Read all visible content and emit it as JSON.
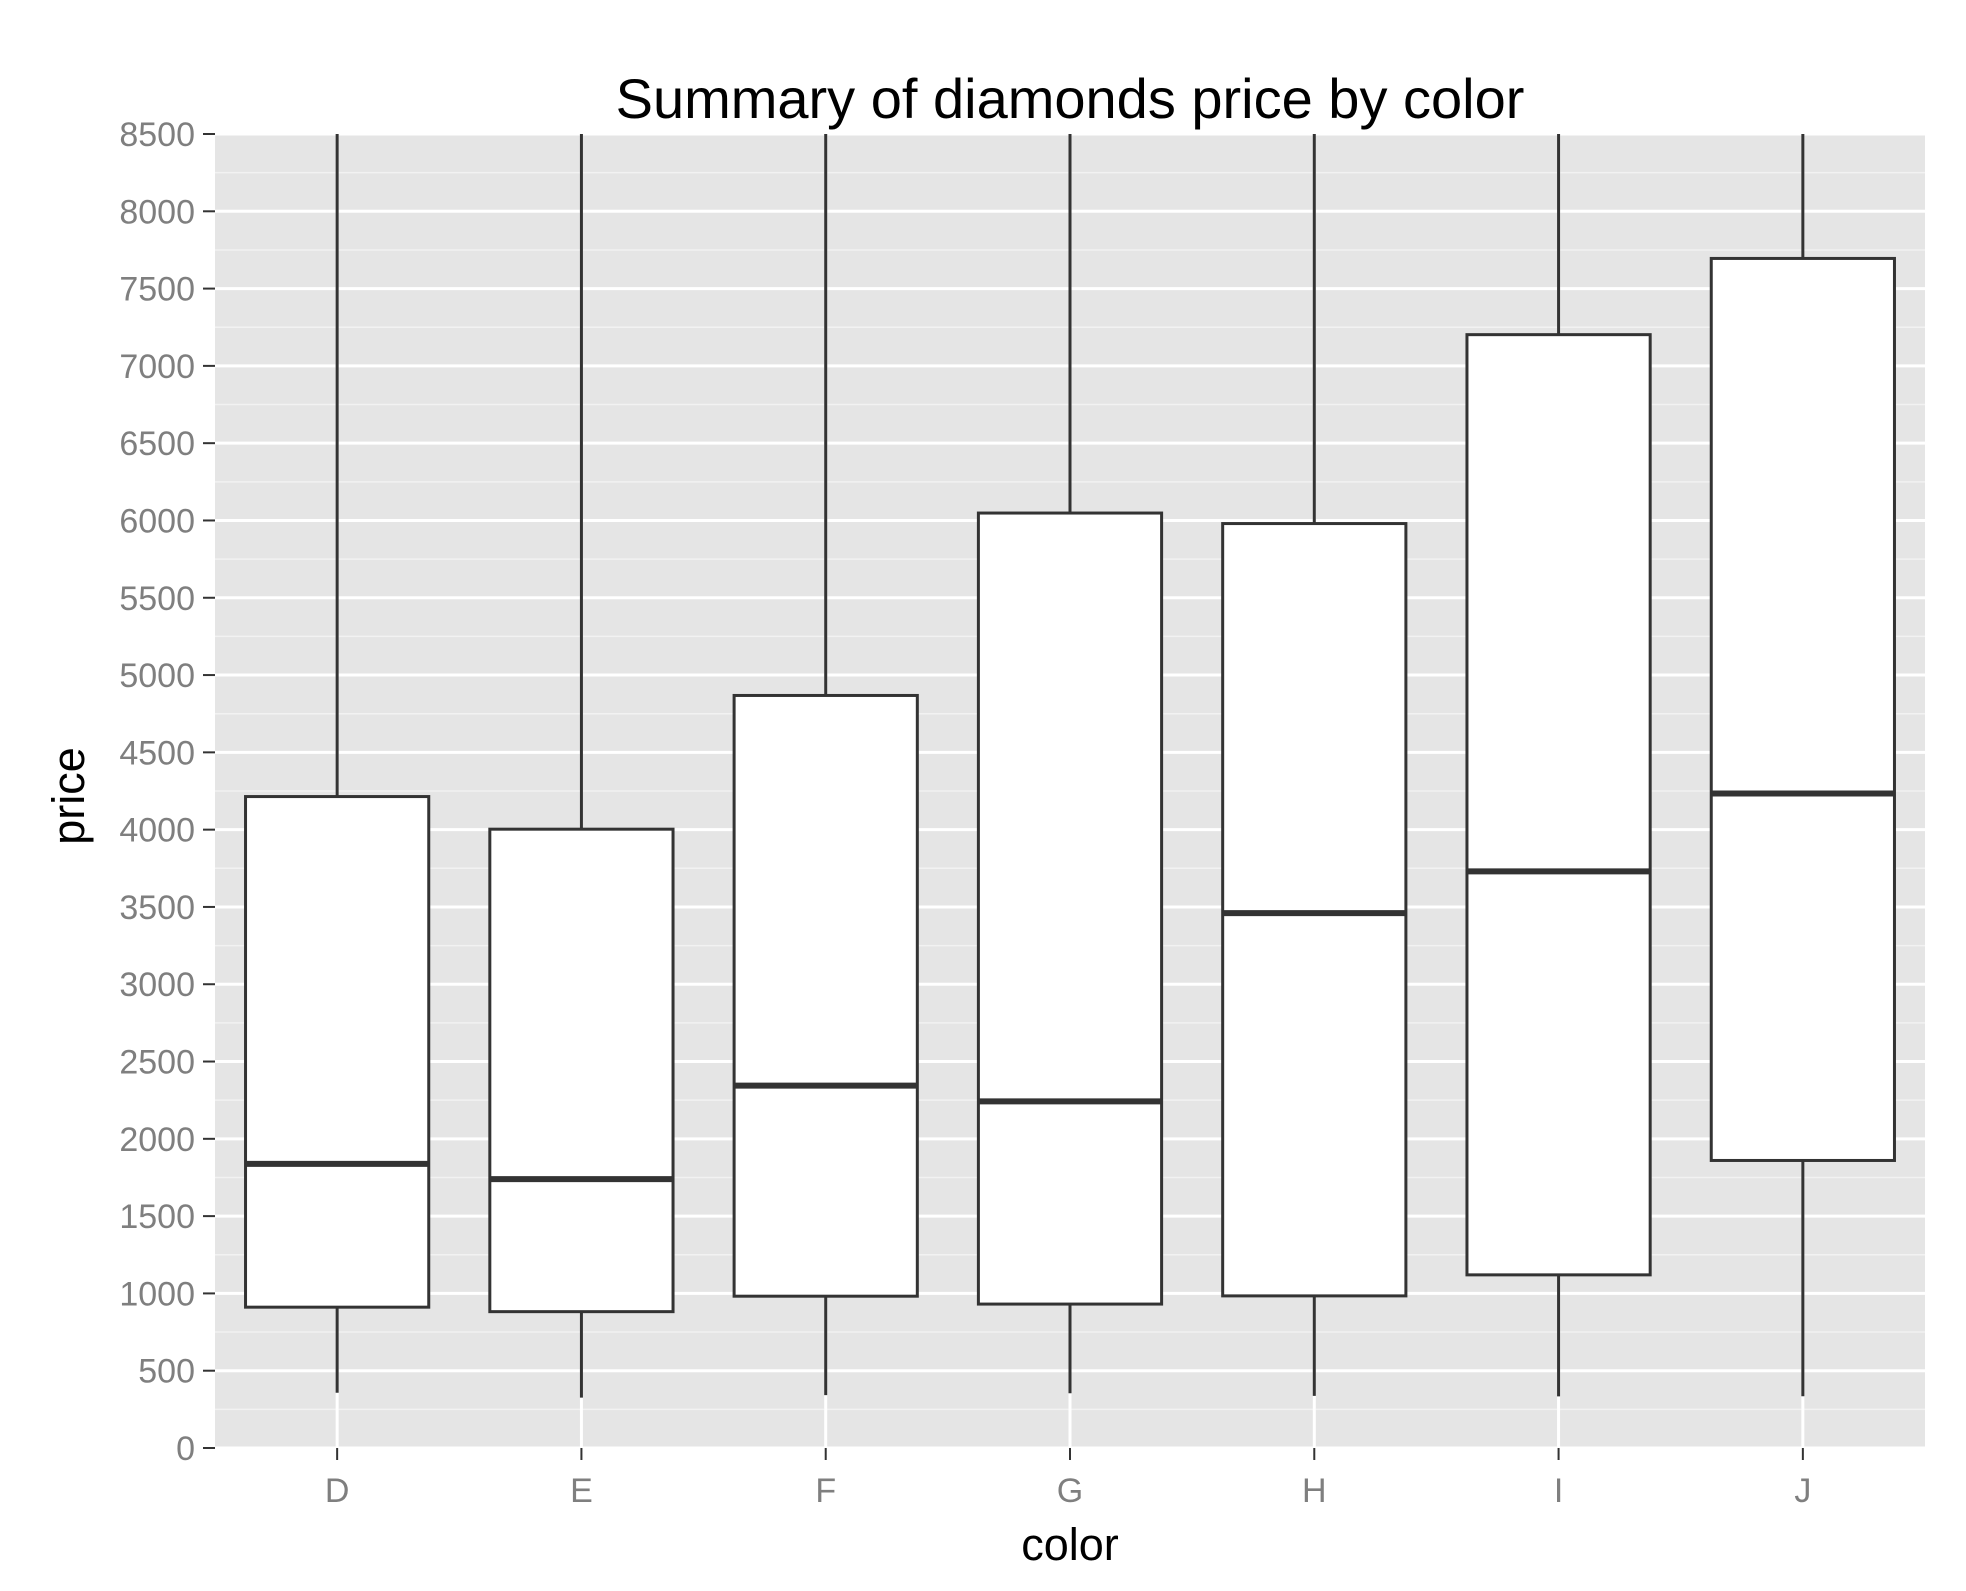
{
  "chart_data": {
    "type": "boxplot",
    "title": "Summary of diamonds price by color",
    "xlabel": "color",
    "ylabel": "price",
    "categories": [
      "D",
      "E",
      "F",
      "G",
      "H",
      "I",
      "J"
    ],
    "boxes": [
      {
        "q1": 911,
        "median": 1838,
        "q3": 4214,
        "whisker_low": 357,
        "whisker_high": 8500
      },
      {
        "q1": 882,
        "median": 1739,
        "q3": 4003,
        "whisker_low": 326,
        "whisker_high": 8500
      },
      {
        "q1": 982,
        "median": 2344,
        "q3": 4868,
        "whisker_low": 342,
        "whisker_high": 8500
      },
      {
        "q1": 931,
        "median": 2242,
        "q3": 6048,
        "whisker_low": 354,
        "whisker_high": 8500
      },
      {
        "q1": 984,
        "median": 3460,
        "q3": 5980,
        "whisker_low": 337,
        "whisker_high": 8500
      },
      {
        "q1": 1120,
        "median": 3730,
        "q3": 7202,
        "whisker_low": 334,
        "whisker_high": 8500
      },
      {
        "q1": 1860,
        "median": 4234,
        "q3": 7695,
        "whisker_low": 335,
        "whisker_high": 8500
      }
    ],
    "yticks": [
      0,
      500,
      1000,
      1500,
      2000,
      2500,
      3000,
      3500,
      4000,
      4500,
      5000,
      5500,
      6000,
      6500,
      7000,
      7500,
      8000,
      8500
    ],
    "ylim": [
      0,
      8500
    ],
    "grid": true,
    "colors": {
      "panel_background": "#e5e5e5",
      "grid_major": "#ffffff",
      "grid_minor": "#f2f2f2",
      "box_fill": "#ffffff",
      "box_stroke": "#333333",
      "tick_label": "#7f7f7f"
    }
  }
}
